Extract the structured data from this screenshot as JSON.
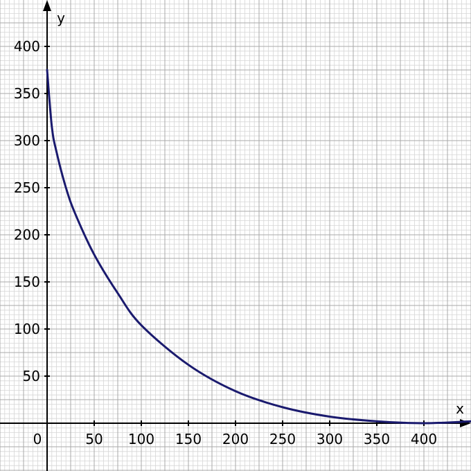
{
  "chart_data": {
    "type": "line",
    "title": "",
    "xlabel": "x",
    "ylabel": "y",
    "origin_label": "0",
    "xlim": [
      0,
      450
    ],
    "ylim": [
      0,
      440
    ],
    "grid": true,
    "x_ticks": [
      {
        "value": 50,
        "label": "50"
      },
      {
        "value": 100,
        "label": "100"
      },
      {
        "value": 150,
        "label": "150"
      },
      {
        "value": 200,
        "label": "200"
      },
      {
        "value": 250,
        "label": "250"
      },
      {
        "value": 300,
        "label": "300"
      },
      {
        "value": 350,
        "label": "350"
      },
      {
        "value": 400,
        "label": "400"
      }
    ],
    "y_ticks": [
      {
        "value": 50,
        "label": "50"
      },
      {
        "value": 100,
        "label": "100"
      },
      {
        "value": 150,
        "label": "150"
      },
      {
        "value": 200,
        "label": "200"
      },
      {
        "value": 250,
        "label": "250"
      },
      {
        "value": 300,
        "label": "300"
      },
      {
        "value": 350,
        "label": "350"
      },
      {
        "value": 400,
        "label": "400"
      }
    ],
    "series": [
      {
        "color": "#1a1a6e",
        "x": [
          0,
          5,
          10,
          20,
          30,
          50,
          75,
          100,
          150,
          200,
          250,
          300,
          350,
          400,
          450
        ],
        "y": [
          375,
          315,
          288,
          250,
          222,
          179,
          138,
          104,
          62,
          34,
          17,
          7,
          2,
          0,
          2
        ]
      }
    ]
  }
}
